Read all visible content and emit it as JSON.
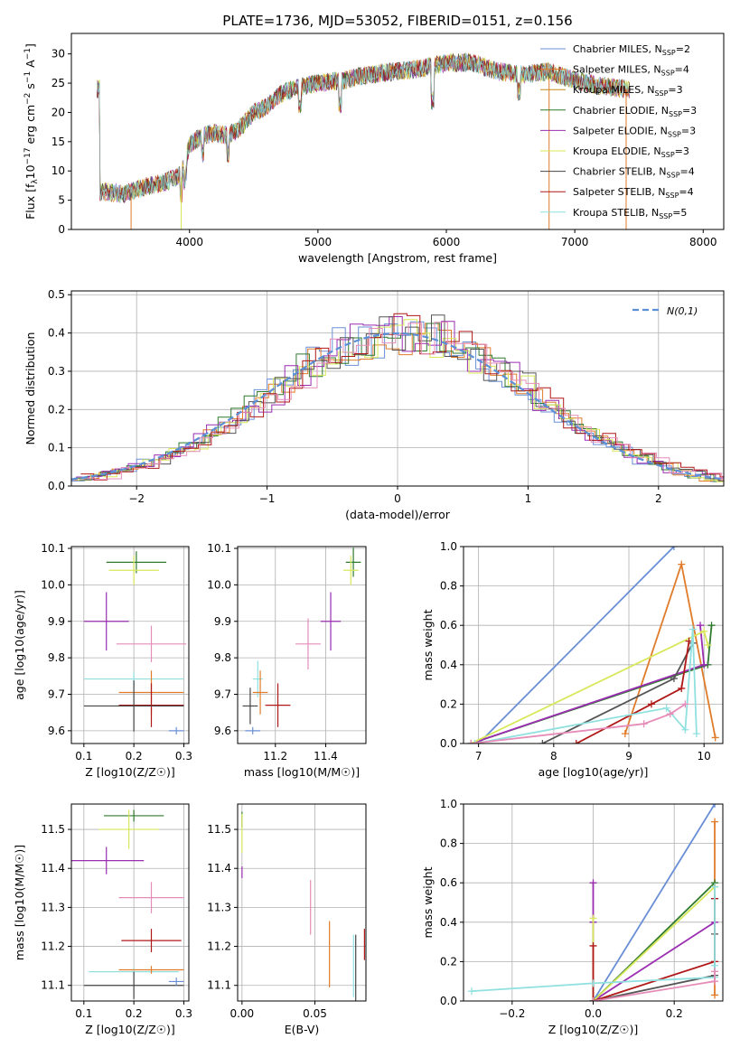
{
  "figure": {
    "title": "PLATE=1736, MJD=53052, FIBERID=0151, z=0.156",
    "model_colors": [
      "#6a8fd6",
      "#e07b2a",
      "#2f7a2f",
      "#9a2db0",
      "#d8e85a",
      "#555555",
      "#b01818",
      "#90e0e0",
      "#e58cb8"
    ]
  },
  "chart_data": [
    {
      "id": "spectrum",
      "type": "line",
      "xlabel": "wavelength [Angstrom, rest frame]",
      "ylabel": "Flux [f_λ10^-17 erg cm^-2 s^-1 A^-1]",
      "xlim": [
        3080,
        8160
      ],
      "ylim": [
        0,
        33.5
      ],
      "xticks": [
        4000,
        5000,
        6000,
        7000,
        8000
      ],
      "yticks": [
        0,
        5,
        10,
        15,
        20,
        25,
        30
      ],
      "grid": false,
      "legend_position": "top-right",
      "continuum": {
        "x": [
          3300,
          3400,
          3500,
          3600,
          3700,
          3800,
          3900,
          3950,
          4000,
          4100,
          4200,
          4300,
          4400,
          4500,
          4600,
          4700,
          4800,
          4900,
          5000,
          5200,
          5400,
          5600,
          5800,
          6000,
          6200,
          6400,
          6600,
          6800,
          7000,
          7200,
          7400
        ],
        "flux": [
          6.5,
          6.3,
          6.0,
          7.0,
          7.5,
          8.0,
          9.0,
          10.5,
          14.5,
          16.0,
          16.5,
          16.0,
          17.5,
          20.0,
          21.0,
          23.0,
          24.0,
          24.5,
          25.0,
          25.5,
          26.5,
          27.0,
          27.5,
          28.5,
          28.5,
          27.0,
          26.5,
          27.0,
          25.5,
          24.5,
          24.0
        ]
      },
      "series": [
        {
          "name": "Chabrier MILES, N_SSP=2",
          "color": "#6a8fd6"
        },
        {
          "name": "Salpeter MILES, N_SSP=4",
          "color": "#e07b2a"
        },
        {
          "name": "Kroupa MILES, N_SSP=3",
          "color": "#c98a18"
        },
        {
          "name": "Chabrier ELODIE, N_SSP=3",
          "color": "#2f7a2f"
        },
        {
          "name": "Salpeter ELODIE, N_SSP=3",
          "color": "#9a2db0"
        },
        {
          "name": "Kroupa ELODIE, N_SSP=3",
          "color": "#d8e85a"
        },
        {
          "name": "Chabrier STELIB, N_SSP=4",
          "color": "#444444"
        },
        {
          "name": "Salpeter STELIB, N_SSP=4",
          "color": "#b01818"
        },
        {
          "name": "Kroupa STELIB, N_SSP=5",
          "color": "#90e0e0"
        }
      ]
    },
    {
      "id": "residuals",
      "type": "bar",
      "xlabel": "(data-model)/error",
      "ylabel": "Normed distribution",
      "xlim": [
        -2.5,
        2.5
      ],
      "ylim": [
        0,
        0.51
      ],
      "xticks": [
        -2,
        -1,
        0,
        1,
        2
      ],
      "xtick_labels": [
        "−2",
        "−1",
        "0",
        "1",
        "2"
      ],
      "yticks": [
        0.0,
        0.1,
        0.2,
        0.3,
        0.4,
        0.5
      ],
      "grid": true,
      "bin_width": 0.1,
      "reference_curve": {
        "name": "N(0,1)",
        "color": "#5b8fd6",
        "style": "dashed"
      },
      "legend_position": "top-right",
      "histogram_colors": [
        "#6a8fd6",
        "#e07b2a",
        "#2f7a2f",
        "#9a2db0",
        "#d8e85a",
        "#555555",
        "#b01818",
        "#e58cb8"
      ]
    },
    {
      "id": "age_vs_Z",
      "type": "scatter",
      "xlabel": "Z [log10(Z/Z☉)]",
      "ylabel": "age  [log10(age/yr)]",
      "xlim": [
        0.075,
        0.31
      ],
      "ylim": [
        9.565,
        10.105
      ],
      "xticks": [
        0.1,
        0.2,
        0.3
      ],
      "yticks": [
        9.6,
        9.7,
        9.8,
        9.9,
        10.0,
        10.1
      ],
      "grid": true,
      "points": [
        {
          "x": 0.205,
          "y": 10.062,
          "xerr": 0.06,
          "yerr": 0.03,
          "color": "#2f7a2f"
        },
        {
          "x": 0.2,
          "y": 10.04,
          "xerr": 0.05,
          "yerr": 0.04,
          "color": "#d8e85a"
        },
        {
          "x": 0.145,
          "y": 9.9,
          "xerr": 0.045,
          "yerr": 0.08,
          "color": "#9a2db0"
        },
        {
          "x": 0.235,
          "y": 9.838,
          "xerr": 0.07,
          "yerr": 0.05,
          "color": "#e58cb8"
        },
        {
          "x": 0.2,
          "y": 9.742,
          "xerr": 0.1,
          "yerr": 0.02,
          "color": "#90e0e0"
        },
        {
          "x": 0.235,
          "y": 9.705,
          "xerr": 0.065,
          "yerr": 0.06,
          "color": "#e07b2a"
        },
        {
          "x": 0.235,
          "y": 9.67,
          "xerr": 0.065,
          "yerr": 0.06,
          "color": "#b01818"
        },
        {
          "x": 0.2,
          "y": 9.668,
          "xerr": 0.1,
          "yerr": 0.07,
          "color": "#444444"
        },
        {
          "x": 0.285,
          "y": 9.6,
          "xerr": 0.015,
          "yerr": 0.01,
          "color": "#6a8fd6"
        }
      ]
    },
    {
      "id": "age_vs_mass",
      "type": "scatter",
      "xlabel": "mass [log10(M/M☉)]",
      "ylabel": "",
      "xlim": [
        11.05,
        11.56
      ],
      "ylim": [
        9.565,
        10.105
      ],
      "xticks": [
        11.2,
        11.4
      ],
      "yticks": [
        9.6,
        9.7,
        9.8,
        9.9,
        10.0,
        10.1
      ],
      "grid": true,
      "points": [
        {
          "x": 11.51,
          "y": 10.062,
          "xerr": 0.03,
          "yerr": 0.04,
          "color": "#2f7a2f"
        },
        {
          "x": 11.5,
          "y": 10.04,
          "xerr": 0.03,
          "yerr": 0.04,
          "color": "#d8e85a"
        },
        {
          "x": 11.42,
          "y": 9.9,
          "xerr": 0.04,
          "yerr": 0.08,
          "color": "#9a2db0"
        },
        {
          "x": 11.33,
          "y": 9.838,
          "xerr": 0.05,
          "yerr": 0.07,
          "color": "#e58cb8"
        },
        {
          "x": 11.13,
          "y": 9.742,
          "xerr": 0.02,
          "yerr": 0.05,
          "color": "#90e0e0"
        },
        {
          "x": 11.14,
          "y": 9.705,
          "xerr": 0.03,
          "yerr": 0.06,
          "color": "#e07b2a"
        },
        {
          "x": 11.21,
          "y": 9.67,
          "xerr": 0.05,
          "yerr": 0.06,
          "color": "#b01818"
        },
        {
          "x": 11.1,
          "y": 9.668,
          "xerr": 0.03,
          "yerr": 0.05,
          "color": "#444444"
        },
        {
          "x": 11.11,
          "y": 9.6,
          "xerr": 0.03,
          "yerr": 0.01,
          "color": "#6a8fd6"
        }
      ]
    },
    {
      "id": "mass_weight_vs_age",
      "type": "line",
      "xlabel": "age  [log10(age/yr)]",
      "ylabel": "mass weight",
      "xlim": [
        6.8,
        10.25
      ],
      "ylim": [
        0,
        1.0
      ],
      "xticks": [
        7,
        8,
        9,
        10
      ],
      "yticks": [
        0.0,
        0.2,
        0.4,
        0.6,
        0.8,
        1.0
      ],
      "grid": true,
      "series": [
        {
          "color": "#6a8fd6",
          "x": [
            7.0,
            9.6
          ],
          "y": [
            0.0,
            1.0
          ]
        },
        {
          "color": "#e07b2a",
          "x": [
            8.95,
            9.7,
            10.15
          ],
          "y": [
            0.05,
            0.91,
            0.03
          ]
        },
        {
          "color": "#2f7a2f",
          "x": [
            6.9,
            10.05,
            10.1
          ],
          "y": [
            0.0,
            0.4,
            0.6
          ]
        },
        {
          "color": "#9a2db0",
          "x": [
            6.9,
            10.0,
            9.95
          ],
          "y": [
            0.0,
            0.4,
            0.6
          ]
        },
        {
          "color": "#d8e85a",
          "x": [
            6.9,
            10.0,
            10.05
          ],
          "y": [
            0.0,
            0.57,
            0.5
          ]
        },
        {
          "color": "#555555",
          "x": [
            7.85,
            9.6,
            9.85
          ],
          "y": [
            0.0,
            0.33,
            0.51
          ]
        },
        {
          "color": "#b01818",
          "x": [
            8.3,
            9.3,
            9.7,
            9.8
          ],
          "y": [
            0.0,
            0.2,
            0.28,
            0.52
          ]
        },
        {
          "color": "#90e0e0",
          "x": [
            6.95,
            9.5,
            9.75,
            9.85,
            9.9
          ],
          "y": [
            0.0,
            0.18,
            0.07,
            0.58,
            0.05
          ]
        },
        {
          "color": "#e58cb8",
          "x": [
            6.9,
            9.2,
            9.55,
            9.75
          ],
          "y": [
            0.0,
            0.1,
            0.15,
            0.2
          ]
        }
      ]
    },
    {
      "id": "mass_vs_Z",
      "type": "scatter",
      "xlabel": "Z [log10(Z/Z☉)]",
      "ylabel": "mass [log10(M/M☉)]",
      "xlim": [
        0.075,
        0.31
      ],
      "ylim": [
        11.06,
        11.565
      ],
      "xticks": [
        0.1,
        0.2,
        0.3
      ],
      "yticks": [
        11.1,
        11.2,
        11.3,
        11.4,
        11.5
      ],
      "grid": true,
      "points": [
        {
          "x": 0.2,
          "y": 11.535,
          "xerr": 0.06,
          "yerr": 0.015,
          "color": "#2f7a2f"
        },
        {
          "x": 0.19,
          "y": 11.5,
          "xerr": 0.06,
          "yerr": 0.05,
          "color": "#d8e85a"
        },
        {
          "x": 0.145,
          "y": 11.42,
          "xerr": 0.075,
          "yerr": 0.035,
          "color": "#9a2db0"
        },
        {
          "x": 0.235,
          "y": 11.325,
          "xerr": 0.065,
          "yerr": 0.04,
          "color": "#e58cb8"
        },
        {
          "x": 0.235,
          "y": 11.215,
          "xerr": 0.06,
          "yerr": 0.03,
          "color": "#b01818"
        },
        {
          "x": 0.2,
          "y": 11.135,
          "xerr": 0.09,
          "yerr": 0.01,
          "color": "#90e0e0"
        },
        {
          "x": 0.235,
          "y": 11.14,
          "xerr": 0.065,
          "yerr": 0.01,
          "color": "#e07b2a"
        },
        {
          "x": 0.2,
          "y": 11.1,
          "xerr": 0.1,
          "yerr": 0.035,
          "color": "#444444"
        },
        {
          "x": 0.285,
          "y": 11.11,
          "xerr": 0.015,
          "yerr": 0.01,
          "color": "#6a8fd6"
        }
      ]
    },
    {
      "id": "mass_vs_ebv",
      "type": "scatter",
      "xlabel": "E(B-V)",
      "ylabel": "",
      "xlim": [
        -0.003,
        0.085
      ],
      "ylim": [
        11.06,
        11.565
      ],
      "xticks": [
        0.0,
        0.05
      ],
      "xtick_labels": [
        "0.00",
        "0.05"
      ],
      "yticks": [
        11.1,
        11.2,
        11.3,
        11.4,
        11.5
      ],
      "grid": true,
      "points": [
        {
          "x": 0.0,
          "y": 11.525,
          "xerr": 0,
          "yerr": 0.02,
          "color": "#2f7a2f"
        },
        {
          "x": 0.0,
          "y": 11.49,
          "xerr": 0,
          "yerr": 0.05,
          "color": "#d8e85a"
        },
        {
          "x": 0.0,
          "y": 11.39,
          "xerr": 0,
          "yerr": 0.015,
          "color": "#9a2db0"
        },
        {
          "x": 0.047,
          "y": 11.3,
          "xerr": 0,
          "yerr": 0.07,
          "color": "#e58cb8"
        },
        {
          "x": 0.06,
          "y": 11.18,
          "xerr": 0,
          "yerr": 0.085,
          "color": "#e07b2a"
        },
        {
          "x": 0.084,
          "y": 11.205,
          "xerr": 0,
          "yerr": 0.04,
          "color": "#b01818"
        },
        {
          "x": 0.0765,
          "y": 11.15,
          "xerr": 0,
          "yerr": 0.08,
          "color": "#90e0e0"
        },
        {
          "x": 0.078,
          "y": 11.12,
          "xerr": 0,
          "yerr": 0.11,
          "color": "#444444"
        }
      ]
    },
    {
      "id": "mass_weight_vs_Z",
      "type": "line",
      "xlabel": "Z [log10(Z/Z☉)]",
      "ylabel": "mass weight",
      "xlim": [
        -0.32,
        0.32
      ],
      "ylim": [
        0,
        1.0
      ],
      "xticks": [
        -0.2,
        0.0,
        0.2
      ],
      "xtick_labels": [
        "−0.2",
        "0.0",
        "0.2"
      ],
      "yticks": [
        0.0,
        0.2,
        0.4,
        0.6,
        0.8,
        1.0
      ],
      "grid": true,
      "series": [
        {
          "color": "#6a8fd6",
          "x": [
            0.0,
            0.3
          ],
          "y": [
            0.0,
            1.0
          ]
        },
        {
          "color": "#e07b2a",
          "x": [
            0.3,
            0.3,
            0.3
          ],
          "y": [
            0.03,
            0.2,
            0.91
          ]
        },
        {
          "color": "#2f7a2f",
          "x": [
            0.0,
            0.0,
            0.3
          ],
          "y": [
            0.4,
            0.0,
            0.6
          ]
        },
        {
          "color": "#9a2db0",
          "x": [
            0.0,
            0.0,
            0.0,
            0.3
          ],
          "y": [
            0.6,
            0.4,
            0.0,
            0.4
          ]
        },
        {
          "color": "#d8e85a",
          "x": [
            0.0,
            0.0,
            0.3
          ],
          "y": [
            0.42,
            0.0,
            0.58
          ]
        },
        {
          "color": "#555555",
          "x": [
            0.0,
            0.3,
            0.3,
            0.3
          ],
          "y": [
            0.0,
            0.13,
            0.34,
            0.52
          ]
        },
        {
          "color": "#b01818",
          "x": [
            0.0,
            0.0,
            0.3,
            0.3
          ],
          "y": [
            0.28,
            0.0,
            0.2,
            0.52
          ]
        },
        {
          "color": "#90e0e0",
          "x": [
            -0.3,
            0.0,
            0.3,
            0.3,
            0.3
          ],
          "y": [
            0.05,
            0.09,
            0.12,
            0.58,
            0.18
          ]
        },
        {
          "color": "#e58cb8",
          "x": [
            0.0,
            0.3,
            0.3
          ],
          "y": [
            0.0,
            0.1,
            0.15
          ]
        }
      ]
    }
  ]
}
